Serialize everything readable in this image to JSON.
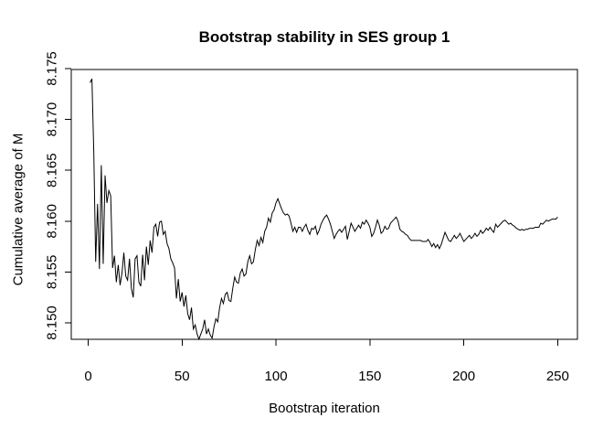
{
  "figure": {
    "background_color": "#ffffff",
    "text_color": "#000000"
  },
  "chart_data": {
    "type": "line",
    "title": "Bootstrap stability in SES group 1",
    "xlabel": "Bootstrap iteration",
    "ylabel": "Cumulative average of M",
    "x_tick_labels": [
      "0",
      "50",
      "100",
      "150",
      "200",
      "250"
    ],
    "x_tick_values": [
      0,
      50,
      100,
      150,
      200,
      250
    ],
    "y_tick_labels": [
      "8.150",
      "8.155",
      "8.160",
      "8.165",
      "8.170",
      "8.175"
    ],
    "y_tick_values": [
      8.15,
      8.155,
      8.16,
      8.165,
      8.17,
      8.175
    ],
    "xlim": [
      -10,
      261
    ],
    "ylim": [
      8.1477,
      8.175
    ],
    "grid": false,
    "legend": "none",
    "line_color": "#000000",
    "box": true,
    "series": [
      {
        "name": "Cumulative average of M",
        "x": [
          1,
          2,
          3,
          4,
          5,
          6,
          7,
          8,
          9,
          10,
          11,
          12,
          13,
          14,
          15,
          16,
          17,
          18,
          19,
          20,
          21,
          22,
          23,
          24,
          25,
          26,
          27,
          28,
          29,
          30,
          31,
          32,
          33,
          34,
          35,
          36,
          37,
          38,
          39,
          40,
          41,
          42,
          43,
          44,
          45,
          46,
          47,
          48,
          49,
          50,
          51,
          52,
          53,
          54,
          55,
          56,
          57,
          58,
          59,
          60,
          61,
          62,
          63,
          64,
          65,
          66,
          67,
          68,
          69,
          70,
          71,
          72,
          73,
          74,
          75,
          76,
          77,
          78,
          79,
          80,
          81,
          82,
          83,
          84,
          85,
          86,
          87,
          88,
          89,
          90,
          91,
          92,
          93,
          94,
          95,
          96,
          97,
          98,
          99,
          100,
          101,
          102,
          103,
          104,
          105,
          106,
          107,
          108,
          109,
          110,
          111,
          112,
          113,
          114,
          115,
          116,
          117,
          118,
          119,
          120,
          121,
          122,
          123,
          124,
          125,
          126,
          127,
          128,
          129,
          130,
          131,
          132,
          133,
          134,
          135,
          136,
          137,
          138,
          139,
          140,
          141,
          142,
          143,
          144,
          145,
          146,
          147,
          148,
          149,
          150,
          151,
          152,
          153,
          154,
          155,
          156,
          157,
          158,
          159,
          160,
          161,
          162,
          163,
          164,
          165,
          166,
          167,
          168,
          169,
          170,
          171,
          172,
          173,
          174,
          175,
          176,
          177,
          178,
          179,
          180,
          181,
          182,
          183,
          184,
          185,
          186,
          187,
          188,
          189,
          190,
          191,
          192,
          193,
          194,
          195,
          196,
          197,
          198,
          199,
          200,
          201,
          202,
          203,
          204,
          205,
          206,
          207,
          208,
          209,
          210,
          211,
          212,
          213,
          214,
          215,
          216,
          217,
          218,
          219,
          220,
          221,
          222,
          223,
          224,
          225,
          226,
          227,
          228,
          229,
          230,
          231,
          232,
          233,
          234,
          235,
          236,
          237,
          238,
          239,
          240,
          241,
          242,
          243,
          244,
          245,
          246,
          247,
          248,
          249,
          250
        ],
        "y": [
          8.1736,
          8.174,
          8.1667,
          8.156,
          8.1617,
          8.1553,
          8.1655,
          8.1558,
          8.1645,
          8.1618,
          8.163,
          8.1625,
          8.1554,
          8.1566,
          8.154,
          8.1557,
          8.1537,
          8.1549,
          8.1569,
          8.1546,
          8.1542,
          8.1563,
          8.1534,
          8.1525,
          8.1563,
          8.1566,
          8.154,
          8.1536,
          8.1567,
          8.1542,
          8.1575,
          8.1557,
          8.1581,
          8.1569,
          8.1594,
          8.1597,
          8.1585,
          8.1599,
          8.16,
          8.1587,
          8.159,
          8.1578,
          8.1573,
          8.1563,
          8.1559,
          8.1554,
          8.1524,
          8.1543,
          8.1521,
          8.153,
          8.1516,
          8.1527,
          8.1509,
          8.1503,
          8.1515,
          8.1494,
          8.1498,
          8.1489,
          8.1484,
          8.1489,
          8.1494,
          8.1503,
          8.1489,
          8.1494,
          8.1488,
          8.1485,
          8.1496,
          8.1504,
          8.1501,
          8.1515,
          8.1524,
          8.1519,
          8.1528,
          8.153,
          8.1522,
          8.1521,
          8.1534,
          8.1545,
          8.154,
          8.1539,
          8.1549,
          8.1553,
          8.1546,
          8.1548,
          8.156,
          8.1566,
          8.1558,
          8.156,
          8.1572,
          8.1581,
          8.1576,
          8.1584,
          8.1579,
          8.159,
          8.1594,
          8.1603,
          8.1599,
          8.1608,
          8.1611,
          8.1618,
          8.1622,
          8.1617,
          8.1612,
          8.1608,
          8.1606,
          8.1607,
          8.1605,
          8.1598,
          8.159,
          8.1594,
          8.1589,
          8.1594,
          8.1594,
          8.159,
          8.1594,
          8.1597,
          8.1591,
          8.1587,
          8.1593,
          8.1592,
          8.1595,
          8.1587,
          8.1591,
          8.1597,
          8.1601,
          8.1604,
          8.1606,
          8.1602,
          8.1597,
          8.159,
          8.1583,
          8.1587,
          8.159,
          8.1592,
          8.1589,
          8.1592,
          8.1595,
          8.1582,
          8.159,
          8.1598,
          8.1594,
          8.159,
          8.1593,
          8.1596,
          8.1593,
          8.1599,
          8.1597,
          8.1601,
          8.1598,
          8.1594,
          8.1585,
          8.1588,
          8.1594,
          8.1601,
          8.1596,
          8.1588,
          8.159,
          8.1595,
          8.1592,
          8.1593,
          8.1598,
          8.16,
          8.1602,
          8.1604,
          8.16,
          8.1592,
          8.159,
          8.1589,
          8.1587,
          8.1586,
          8.1583,
          8.1581,
          8.1581,
          8.1581,
          8.1581,
          8.1581,
          8.1581,
          8.158,
          8.158,
          8.158,
          8.1582,
          8.1579,
          8.1575,
          8.1578,
          8.1574,
          8.1577,
          8.1573,
          8.1577,
          8.1583,
          8.1589,
          8.1585,
          8.1581,
          8.158,
          8.1583,
          8.1586,
          8.1583,
          8.1585,
          8.1588,
          8.1584,
          8.158,
          8.1582,
          8.1584,
          8.1586,
          8.1583,
          8.1585,
          8.1588,
          8.1585,
          8.1587,
          8.1591,
          8.1588,
          8.159,
          8.1593,
          8.1591,
          8.1594,
          8.1591,
          8.1589,
          8.1597,
          8.1594,
          8.1596,
          8.1598,
          8.16,
          8.1601,
          8.1599,
          8.1597,
          8.1598,
          8.1596,
          8.1595,
          8.1593,
          8.1592,
          8.1591,
          8.1592,
          8.1591,
          8.1592,
          8.1592,
          8.1593,
          8.1593,
          8.1593,
          8.1594,
          8.1594,
          8.1594,
          8.1598,
          8.1597,
          8.1599,
          8.1601,
          8.16,
          8.1601,
          8.1602,
          8.1602,
          8.1602,
          8.1604
        ]
      }
    ]
  }
}
